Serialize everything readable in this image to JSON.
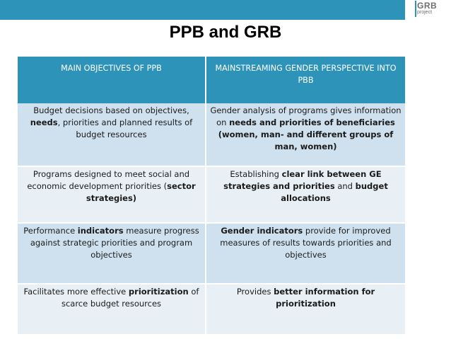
{
  "header": {
    "logo_main": "GRB",
    "logo_sub": "project"
  },
  "title": "PPB and GRB",
  "table": {
    "headers": [
      "MAIN OBJECTIVES OF PPB",
      "MAINSTREAMING GENDER PERSPECTIVE INTO PBB"
    ],
    "rows": [
      [
        [
          {
            "t": "Budget decisions based on objectives, ",
            "b": false
          },
          {
            "t": "needs",
            "b": true
          },
          {
            "t": ", priorities and planned results of budget resources",
            "b": false
          }
        ],
        [
          {
            "t": "Gender analysis of programs gives information on ",
            "b": false
          },
          {
            "t": "needs and priorities of beneficiaries (women, man- and different groups of man, women)",
            "b": true
          }
        ]
      ],
      [
        [
          {
            "t": "Programs designed to meet social and economic development priorities (",
            "b": false
          },
          {
            "t": "sector strategies)",
            "b": true
          }
        ],
        [
          {
            "t": "Establishing ",
            "b": false
          },
          {
            "t": "clear link between GE strategies and priorities",
            "b": true
          },
          {
            "t": " and ",
            "b": false
          },
          {
            "t": "budget allocations",
            "b": true
          }
        ]
      ],
      [
        [
          {
            "t": "Performance ",
            "b": false
          },
          {
            "t": "indicators",
            "b": true
          },
          {
            "t": " measure progress against strategic priorities and program objectives",
            "b": false
          }
        ],
        [
          {
            "t": "Gender indicators",
            "b": true
          },
          {
            "t": " provide for improved measures of results towards priorities and objectives",
            "b": false
          }
        ]
      ],
      [
        [
          {
            "t": "Facilitates more effective ",
            "b": false
          },
          {
            "t": "prioritization",
            "b": true
          },
          {
            "t": " of scarce budget resources",
            "b": false
          }
        ],
        [
          {
            "t": "Provides ",
            "b": false
          },
          {
            "t": "better information for prioritization",
            "b": true
          }
        ]
      ]
    ]
  }
}
